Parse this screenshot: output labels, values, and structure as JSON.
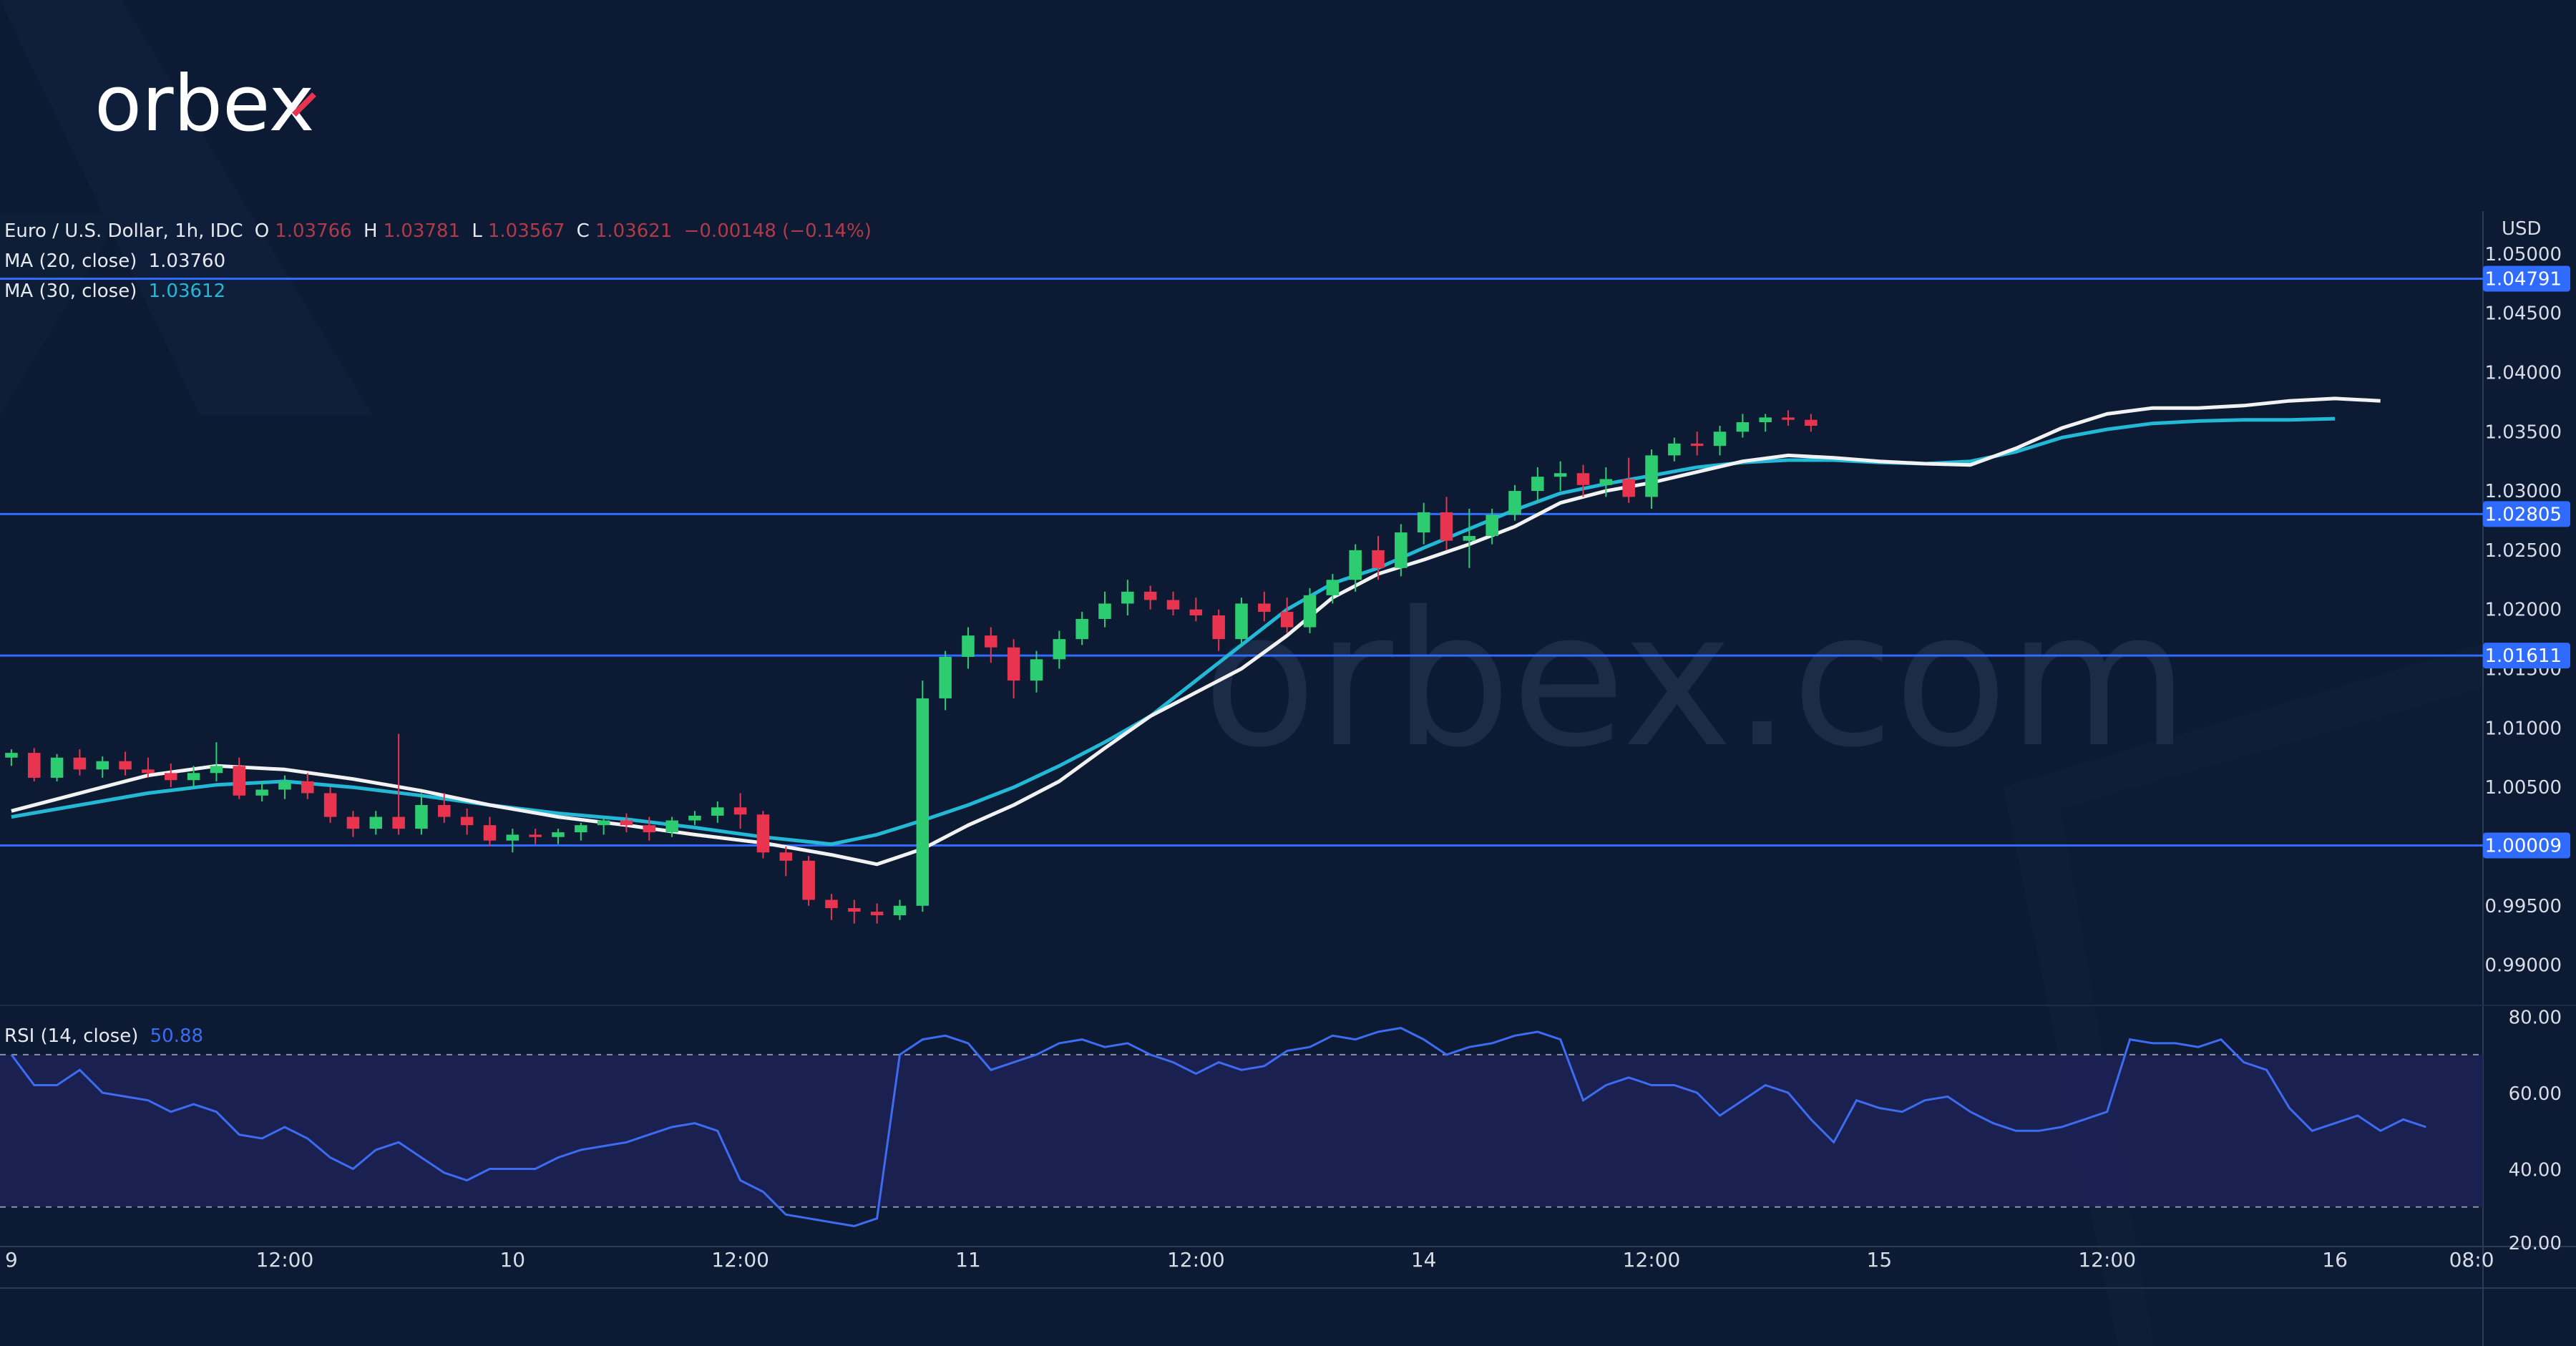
{
  "brand": {
    "logo_text": "orbex",
    "watermark": "orbex.com"
  },
  "legend": {
    "symbol": "Euro / U.S. Dollar, 1h, IDC",
    "o_label": "O",
    "o_value": "1.03766",
    "h_label": "H",
    "h_value": "1.03781",
    "l_label": "L",
    "l_value": "1.03567",
    "c_label": "C",
    "c_value": "1.03621",
    "change": "−0.00148 (−0.14%)",
    "ma20_label": "MA (20, close)",
    "ma20_value": "1.03760",
    "ma30_label": "MA (30, close)",
    "ma30_value": "1.03612",
    "rsi_label": "RSI (14, close)",
    "rsi_value": "50.88"
  },
  "colors": {
    "background": "#0c1b33",
    "up": "#2ecc71",
    "down": "#e8344e",
    "ma20": "#f2f2f2",
    "ma30": "#22b8d6",
    "level_line": "#2f6bff",
    "rsi_line": "#3d6cf2",
    "rsi_band": "#1d2257"
  },
  "chart_data": {
    "type": "candlestick",
    "currency_label": "USD",
    "price_axis_ticks": [
      "1.05000",
      "1.04500",
      "1.04000",
      "1.03500",
      "1.03000",
      "1.02500",
      "1.02000",
      "1.01500",
      "1.01000",
      "1.00500",
      "1.00000",
      "0.99500",
      "0.99000"
    ],
    "ylim": [
      0.9875,
      1.0515
    ],
    "time_axis_labels": [
      {
        "label": "9",
        "x": 0
      },
      {
        "label": "12:00",
        "x": 12
      },
      {
        "label": "10",
        "x": 22
      },
      {
        "label": "12:00",
        "x": 32
      },
      {
        "label": "11",
        "x": 42
      },
      {
        "label": "12:00",
        "x": 52
      },
      {
        "label": "14",
        "x": 62
      },
      {
        "label": "12:00",
        "x": 72
      },
      {
        "label": "15",
        "x": 82
      },
      {
        "label": "12:00",
        "x": 92
      },
      {
        "label": "16",
        "x": 102
      },
      {
        "label": "08:0",
        "x": 108
      }
    ],
    "xlim": [
      -0.5,
      108.5
    ],
    "levels": [
      {
        "value": 1.04791,
        "label": "1.04791"
      },
      {
        "value": 1.02805,
        "label": "1.02805"
      },
      {
        "value": 1.01611,
        "label": "1.01611"
      },
      {
        "value": 1.00009,
        "label": "1.00009"
      }
    ],
    "candles_ohlc": [
      [
        1.0075,
        1.0082,
        1.0068,
        1.0079
      ],
      [
        1.0079,
        1.0083,
        1.0055,
        1.0058
      ],
      [
        1.0058,
        1.0078,
        1.0055,
        1.0075
      ],
      [
        1.0075,
        1.0082,
        1.006,
        1.0065
      ],
      [
        1.0065,
        1.0076,
        1.0058,
        1.0072
      ],
      [
        1.0072,
        1.008,
        1.006,
        1.0065
      ],
      [
        1.0065,
        1.0075,
        1.0058,
        1.0062
      ],
      [
        1.0062,
        1.007,
        1.005,
        1.0056
      ],
      [
        1.0056,
        1.0068,
        1.005,
        1.0062
      ],
      [
        1.0062,
        1.0088,
        1.0055,
        1.0068
      ],
      [
        1.0068,
        1.0075,
        1.004,
        1.0043
      ],
      [
        1.0043,
        1.0055,
        1.0038,
        1.0048
      ],
      [
        1.0048,
        1.006,
        1.004,
        1.0055
      ],
      [
        1.0055,
        1.0062,
        1.004,
        1.0045
      ],
      [
        1.0045,
        1.005,
        1.002,
        1.0025
      ],
      [
        1.0025,
        1.003,
        1.0008,
        1.0015
      ],
      [
        1.0015,
        1.003,
        1.001,
        1.0025
      ],
      [
        1.0025,
        1.0095,
        1.001,
        1.0015
      ],
      [
        1.0015,
        1.0045,
        1.001,
        1.0035
      ],
      [
        1.0035,
        1.0045,
        1.002,
        1.0025
      ],
      [
        1.0025,
        1.0032,
        1.001,
        1.0018
      ],
      [
        1.0018,
        1.0025,
        1.0,
        1.0005
      ],
      [
        1.0005,
        1.0015,
        0.9995,
        1.001
      ],
      [
        1.001,
        1.0015,
        1.0002,
        1.0008
      ],
      [
        1.0008,
        1.0015,
        1.0002,
        1.0012
      ],
      [
        1.0012,
        1.002,
        1.0005,
        1.0018
      ],
      [
        1.0018,
        1.0025,
        1.001,
        1.0022
      ],
      [
        1.0022,
        1.0028,
        1.0012,
        1.0018
      ],
      [
        1.0018,
        1.0025,
        1.0005,
        1.0012
      ],
      [
        1.0012,
        1.0025,
        1.0008,
        1.0022
      ],
      [
        1.0022,
        1.003,
        1.0018,
        1.0026
      ],
      [
        1.0026,
        1.0038,
        1.002,
        1.0033
      ],
      [
        1.0033,
        1.0045,
        1.0015,
        1.0027
      ],
      [
        1.0027,
        1.003,
        0.999,
        0.9995
      ],
      [
        0.9995,
        1.0,
        0.9975,
        0.9988
      ],
      [
        0.9988,
        0.9992,
        0.995,
        0.9955
      ],
      [
        0.9955,
        0.996,
        0.9938,
        0.9948
      ],
      [
        0.9948,
        0.9955,
        0.9935,
        0.9945
      ],
      [
        0.9945,
        0.9952,
        0.9935,
        0.9942
      ],
      [
        0.9942,
        0.9955,
        0.9938,
        0.995
      ],
      [
        0.995,
        1.014,
        0.9945,
        1.0125
      ],
      [
        1.0125,
        1.0165,
        1.0115,
        1.016
      ],
      [
        1.016,
        1.0185,
        1.015,
        1.0178
      ],
      [
        1.0178,
        1.0185,
        1.0155,
        1.0168
      ],
      [
        1.0168,
        1.0175,
        1.0125,
        1.014
      ],
      [
        1.014,
        1.0165,
        1.013,
        1.0158
      ],
      [
        1.0158,
        1.0182,
        1.015,
        1.0175
      ],
      [
        1.0175,
        1.0198,
        1.017,
        1.0192
      ],
      [
        1.0192,
        1.0215,
        1.0185,
        1.0205
      ],
      [
        1.0205,
        1.0225,
        1.0195,
        1.0215
      ],
      [
        1.0215,
        1.022,
        1.02,
        1.0208
      ],
      [
        1.0208,
        1.0215,
        1.0195,
        1.02
      ],
      [
        1.02,
        1.021,
        1.019,
        1.0195
      ],
      [
        1.0195,
        1.02,
        1.0165,
        1.0175
      ],
      [
        1.0175,
        1.021,
        1.017,
        1.0205
      ],
      [
        1.0205,
        1.0215,
        1.019,
        1.0198
      ],
      [
        1.0198,
        1.021,
        1.018,
        1.0185
      ],
      [
        1.0185,
        1.0218,
        1.018,
        1.0212
      ],
      [
        1.0212,
        1.023,
        1.0205,
        1.0225
      ],
      [
        1.0225,
        1.0255,
        1.0215,
        1.025
      ],
      [
        1.025,
        1.0262,
        1.0225,
        1.0235
      ],
      [
        1.0235,
        1.0272,
        1.0228,
        1.0265
      ],
      [
        1.0265,
        1.029,
        1.0255,
        1.0282
      ],
      [
        1.0282,
        1.0295,
        1.025,
        1.0258
      ],
      [
        1.0258,
        1.0285,
        1.0235,
        1.0262
      ],
      [
        1.0262,
        1.0285,
        1.0255,
        1.028
      ],
      [
        1.028,
        1.0305,
        1.0275,
        1.03
      ],
      [
        1.03,
        1.032,
        1.029,
        1.0312
      ],
      [
        1.0312,
        1.0325,
        1.03,
        1.0315
      ],
      [
        1.0315,
        1.0322,
        1.0295,
        1.0305
      ],
      [
        1.0305,
        1.032,
        1.0295,
        1.031
      ],
      [
        1.031,
        1.0328,
        1.029,
        1.0295
      ],
      [
        1.0295,
        1.0335,
        1.0285,
        1.033
      ],
      [
        1.033,
        1.0345,
        1.0325,
        1.034
      ],
      [
        1.034,
        1.035,
        1.033,
        1.0338
      ],
      [
        1.0338,
        1.0355,
        1.033,
        1.035
      ],
      [
        1.035,
        1.0365,
        1.0345,
        1.0358
      ],
      [
        1.0358,
        1.0365,
        1.035,
        1.0362
      ],
      [
        1.0362,
        1.0368,
        1.0355,
        1.036
      ],
      [
        1.036,
        1.0365,
        1.035,
        1.0355
      ]
    ],
    "ma20": [
      [
        0,
        1.003
      ],
      [
        3,
        1.0045
      ],
      [
        6,
        1.006
      ],
      [
        9,
        1.0068
      ],
      [
        12,
        1.0065
      ],
      [
        15,
        1.0057
      ],
      [
        18,
        1.0047
      ],
      [
        21,
        1.0035
      ],
      [
        24,
        1.0025
      ],
      [
        27,
        1.0018
      ],
      [
        30,
        1.001
      ],
      [
        33,
        1.0003
      ],
      [
        36,
        0.9993
      ],
      [
        38,
        0.9985
      ],
      [
        40,
        0.9998
      ],
      [
        42,
        1.0018
      ],
      [
        44,
        1.0035
      ],
      [
        46,
        1.0055
      ],
      [
        48,
        1.0083
      ],
      [
        50,
        1.011
      ],
      [
        52,
        1.013
      ],
      [
        54,
        1.015
      ],
      [
        56,
        1.0178
      ],
      [
        58,
        1.021
      ],
      [
        60,
        1.023
      ],
      [
        62,
        1.0242
      ],
      [
        64,
        1.0255
      ],
      [
        66,
        1.027
      ],
      [
        68,
        1.029
      ],
      [
        70,
        1.03
      ],
      [
        72,
        1.0307
      ],
      [
        74,
        1.0316
      ],
      [
        76,
        1.0325
      ],
      [
        78,
        1.033
      ],
      [
        80,
        1.0328
      ],
      [
        82,
        1.0325
      ],
      [
        84,
        1.0323
      ],
      [
        86,
        1.0322
      ],
      [
        88,
        1.0336
      ],
      [
        90,
        1.0353
      ],
      [
        92,
        1.0365
      ],
      [
        94,
        1.037
      ],
      [
        96,
        1.037
      ],
      [
        98,
        1.0372
      ],
      [
        100,
        1.0376
      ],
      [
        102,
        1.0378
      ],
      [
        104,
        1.0376
      ]
    ],
    "ma30": [
      [
        0,
        1.0025
      ],
      [
        3,
        1.0035
      ],
      [
        6,
        1.0045
      ],
      [
        9,
        1.0052
      ],
      [
        12,
        1.0055
      ],
      [
        15,
        1.005
      ],
      [
        18,
        1.0043
      ],
      [
        21,
        1.0035
      ],
      [
        24,
        1.0028
      ],
      [
        27,
        1.0023
      ],
      [
        30,
        1.0016
      ],
      [
        33,
        1.0008
      ],
      [
        36,
        1.0002
      ],
      [
        38,
        1.001
      ],
      [
        40,
        1.0022
      ],
      [
        42,
        1.0035
      ],
      [
        44,
        1.005
      ],
      [
        46,
        1.0068
      ],
      [
        48,
        1.0088
      ],
      [
        50,
        1.011
      ],
      [
        52,
        1.014
      ],
      [
        54,
        1.017
      ],
      [
        56,
        1.02
      ],
      [
        58,
        1.0222
      ],
      [
        60,
        1.0235
      ],
      [
        62,
        1.0252
      ],
      [
        64,
        1.0268
      ],
      [
        66,
        1.0284
      ],
      [
        68,
        1.0298
      ],
      [
        70,
        1.0306
      ],
      [
        72,
        1.0313
      ],
      [
        74,
        1.032
      ],
      [
        76,
        1.0324
      ],
      [
        78,
        1.0326
      ],
      [
        80,
        1.0326
      ],
      [
        82,
        1.0324
      ],
      [
        84,
        1.0323
      ],
      [
        86,
        1.0325
      ],
      [
        88,
        1.0333
      ],
      [
        90,
        1.0345
      ],
      [
        92,
        1.0352
      ],
      [
        94,
        1.0357
      ],
      [
        96,
        1.0359
      ],
      [
        98,
        1.036
      ],
      [
        100,
        1.036
      ],
      [
        102,
        1.0361
      ]
    ],
    "rsi": {
      "ticks": [
        "80.00",
        "60.00",
        "40.00",
        "20.00"
      ],
      "ylim": [
        20,
        82
      ],
      "band": [
        30,
        70
      ],
      "values": [
        [
          0,
          70
        ],
        [
          1,
          62
        ],
        [
          2,
          62
        ],
        [
          3,
          66
        ],
        [
          4,
          60
        ],
        [
          5,
          59
        ],
        [
          6,
          58
        ],
        [
          7,
          55
        ],
        [
          8,
          57
        ],
        [
          9,
          55
        ],
        [
          10,
          49
        ],
        [
          11,
          48
        ],
        [
          12,
          51
        ],
        [
          13,
          48
        ],
        [
          14,
          43
        ],
        [
          15,
          40
        ],
        [
          16,
          45
        ],
        [
          17,
          47
        ],
        [
          18,
          43
        ],
        [
          19,
          39
        ],
        [
          20,
          37
        ],
        [
          21,
          40
        ],
        [
          22,
          40
        ],
        [
          23,
          40
        ],
        [
          24,
          43
        ],
        [
          25,
          45
        ],
        [
          26,
          46
        ],
        [
          27,
          47
        ],
        [
          28,
          49
        ],
        [
          29,
          51
        ],
        [
          30,
          52
        ],
        [
          31,
          50
        ],
        [
          32,
          37
        ],
        [
          33,
          34
        ],
        [
          34,
          28
        ],
        [
          35,
          27
        ],
        [
          36,
          26
        ],
        [
          37,
          25
        ],
        [
          38,
          27
        ],
        [
          39,
          70
        ],
        [
          40,
          74
        ],
        [
          41,
          75
        ],
        [
          42,
          73
        ],
        [
          43,
          66
        ],
        [
          44,
          68
        ],
        [
          45,
          70
        ],
        [
          46,
          73
        ],
        [
          47,
          74
        ],
        [
          48,
          72
        ],
        [
          49,
          73
        ],
        [
          50,
          70
        ],
        [
          51,
          68
        ],
        [
          52,
          65
        ],
        [
          53,
          68
        ],
        [
          54,
          66
        ],
        [
          55,
          67
        ],
        [
          56,
          71
        ],
        [
          57,
          72
        ],
        [
          58,
          75
        ],
        [
          59,
          74
        ],
        [
          60,
          76
        ],
        [
          61,
          77
        ],
        [
          62,
          74
        ],
        [
          63,
          70
        ],
        [
          64,
          72
        ],
        [
          65,
          73
        ],
        [
          66,
          75
        ],
        [
          67,
          76
        ],
        [
          68,
          74
        ],
        [
          69,
          58
        ],
        [
          70,
          62
        ],
        [
          71,
          64
        ],
        [
          72,
          62
        ],
        [
          73,
          62
        ],
        [
          74,
          60
        ],
        [
          75,
          54
        ],
        [
          76,
          58
        ],
        [
          77,
          62
        ],
        [
          78,
          60
        ],
        [
          79,
          53
        ],
        [
          80,
          47
        ],
        [
          81,
          58
        ],
        [
          82,
          56
        ],
        [
          83,
          55
        ],
        [
          84,
          58
        ],
        [
          85,
          59
        ],
        [
          86,
          55
        ],
        [
          87,
          52
        ],
        [
          88,
          50
        ],
        [
          89,
          50
        ],
        [
          90,
          51
        ],
        [
          91,
          53
        ],
        [
          92,
          55
        ],
        [
          93,
          74
        ],
        [
          94,
          73
        ],
        [
          95,
          73
        ],
        [
          96,
          72
        ],
        [
          97,
          74
        ],
        [
          98,
          68
        ],
        [
          99,
          66
        ],
        [
          100,
          56
        ],
        [
          101,
          50
        ],
        [
          102,
          52
        ],
        [
          103,
          54
        ],
        [
          104,
          50
        ],
        [
          105,
          53
        ],
        [
          106,
          51
        ]
      ]
    }
  }
}
